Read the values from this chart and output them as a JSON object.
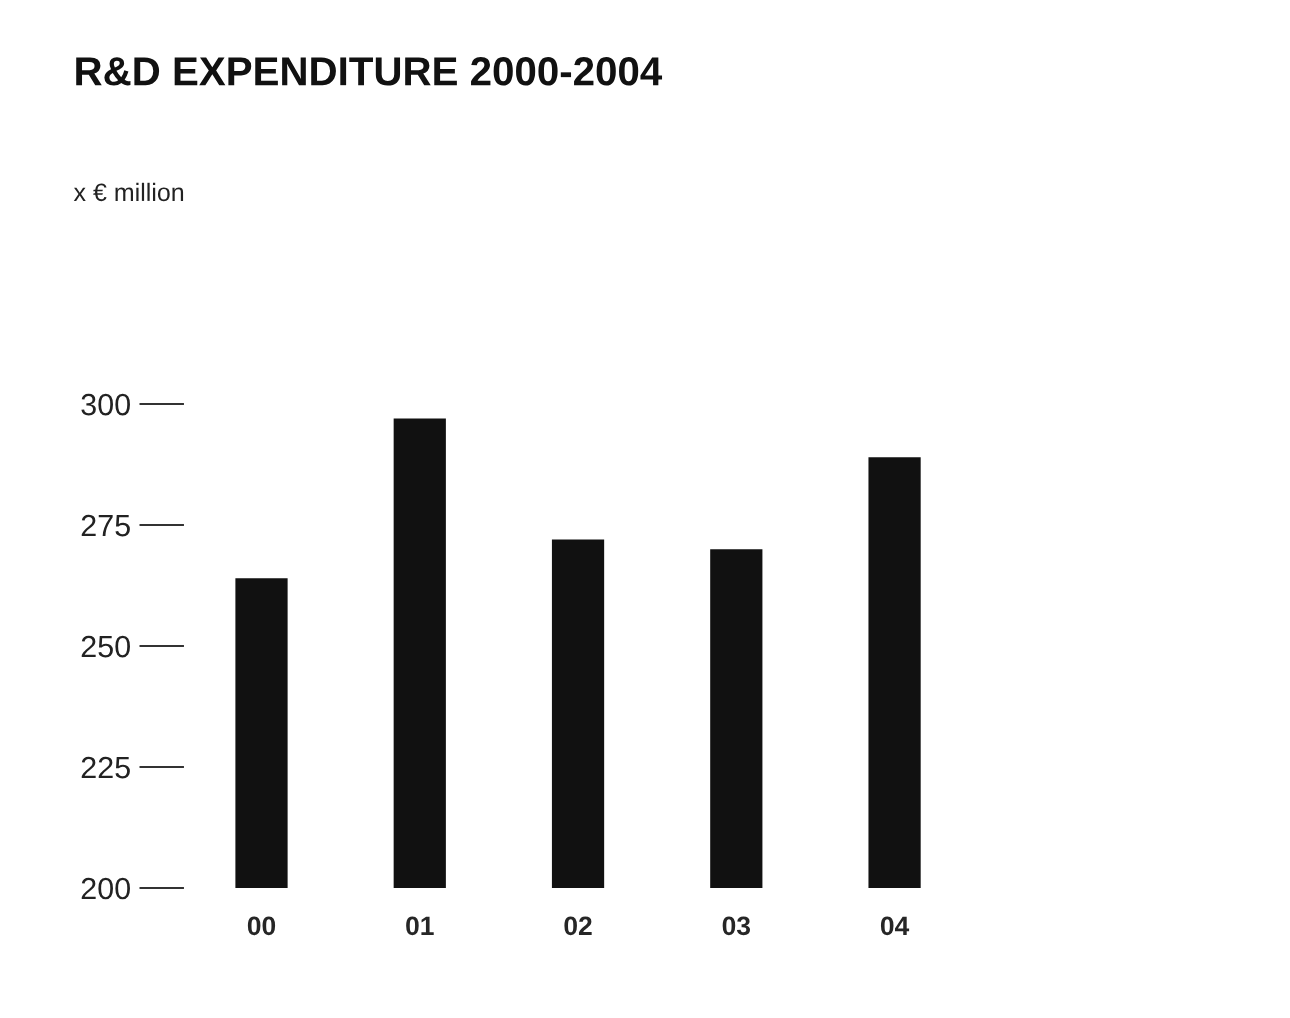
{
  "chart_data": {
    "type": "bar",
    "title": "R&D EXPENDITURE 2000-2004",
    "annotations": [
      "x € million"
    ],
    "categories": [
      "00",
      "01",
      "02",
      "03",
      "04"
    ],
    "values": [
      264,
      297,
      272,
      270,
      289
    ],
    "color": "#111111",
    "ylim": [
      200,
      300
    ],
    "yticks": [
      200,
      225,
      250,
      275,
      300
    ],
    "grid": false
  }
}
